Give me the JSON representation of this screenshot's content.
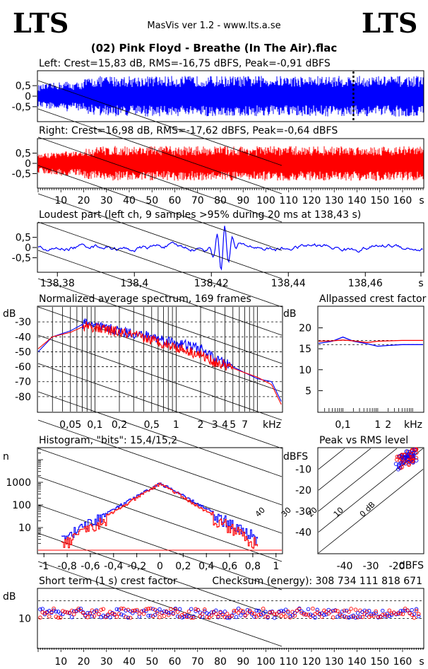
{
  "header": {
    "logo_left": "LTS",
    "logo_right": "LTS",
    "app": "MasVis ver 1.2 - www.lts.a.se",
    "track": "(02) Pink Floyd - Breathe (In The Air).flac"
  },
  "colors": {
    "left": "#0000ff",
    "right": "#ff0000",
    "grid": "#000000"
  },
  "chart_data": [
    {
      "type": "area",
      "id": "left_waveform",
      "title": "Left: Crest=15,83 dB, RMS=-16,75 dBFS, Peak=-0,91 dBFS",
      "yticks": [
        "0,5",
        "0",
        "-0,5"
      ],
      "ylim": [
        -1,
        1
      ],
      "marker_s": 138.43,
      "duration_s": 169
    },
    {
      "type": "area",
      "id": "right_waveform",
      "title": "Right: Crest=16,98 dB, RMS=-17,62 dBFS, Peak=-0,64 dBFS",
      "yticks": [
        "0,5",
        "0",
        "-0,5"
      ],
      "ylim": [
        -1,
        1
      ],
      "xticks": [
        "10",
        "20",
        "30",
        "40",
        "50",
        "60",
        "70",
        "80",
        "90",
        "100",
        "110",
        "120",
        "130",
        "140",
        "150",
        "160",
        "s"
      ]
    },
    {
      "type": "line",
      "id": "loudest_part",
      "title": "Loudest part (left  ch, 9 samples >95% during 20 ms at 138,43 s)",
      "yticks": [
        "0,5",
        "0",
        "-0,5"
      ],
      "ylim": [
        -1,
        1
      ],
      "xticks": [
        "138,38",
        "138,4",
        "138,42",
        "138,44",
        "138,46",
        "s"
      ],
      "xlim": [
        138.375,
        138.475
      ],
      "peak_at": 138.423
    },
    {
      "type": "line",
      "id": "spectrum",
      "title": "Normalized average spectrum, 169 frames",
      "ylabel": "dB",
      "yticks": [
        "-30",
        "-40",
        "-50",
        "-60",
        "-70",
        "-80"
      ],
      "xticks": [
        "0,05",
        "0,1",
        "0,2",
        "0,5",
        "1",
        "2",
        "3",
        "4",
        "5",
        "7",
        "kHz"
      ],
      "xlim_khz": [
        0.02,
        20
      ],
      "ylim_db": [
        -90,
        -20
      ],
      "series": [
        {
          "name": "left",
          "x": [
            0.02,
            0.03,
            0.05,
            0.08,
            0.1,
            0.2,
            0.5,
            1,
            2,
            3,
            5,
            7,
            10,
            15,
            20
          ],
          "y": [
            -50,
            -40,
            -36,
            -30,
            -33,
            -36,
            -40,
            -44,
            -48,
            -55,
            -60,
            -64,
            -68,
            -70,
            -84
          ]
        },
        {
          "name": "right",
          "x": [
            0.02,
            0.03,
            0.05,
            0.08,
            0.1,
            0.2,
            0.5,
            1,
            2,
            3,
            5,
            7,
            10,
            15,
            20
          ],
          "y": [
            -48,
            -40,
            -37,
            -32,
            -34,
            -37,
            -42,
            -47,
            -52,
            -57,
            -61,
            -64,
            -67,
            -72,
            -86
          ]
        }
      ]
    },
    {
      "type": "line",
      "id": "allpassed_crest",
      "title": "Allpassed crest factor",
      "ylabel": "dB",
      "yticks": [
        "20",
        "15",
        "10",
        "5"
      ],
      "ylim": [
        0,
        25
      ],
      "xticks": [
        "0,1",
        "1",
        "2",
        "kHz"
      ],
      "series": [
        {
          "name": "left",
          "x": [
            0.02,
            0.05,
            0.1,
            0.2,
            0.5,
            1,
            2,
            5,
            20
          ],
          "y": [
            16.3,
            16.8,
            17.8,
            16.8,
            16.2,
            15.6,
            15.8,
            16,
            16
          ]
        },
        {
          "name": "right",
          "x": [
            0.02,
            0.05,
            0.1,
            0.2,
            0.5,
            1,
            2,
            5,
            20
          ],
          "y": [
            16.8,
            16.9,
            17.1,
            16.9,
            16.5,
            16.8,
            16.9,
            17,
            17
          ]
        }
      ]
    },
    {
      "type": "line",
      "id": "histogram",
      "title": "Histogram, \"bits\": 15,4/15,2",
      "ylabel": "n",
      "yticks": [
        "1000",
        "100",
        "10"
      ],
      "xticks": [
        "-1",
        "-0,8",
        "-0,6",
        "-0,4",
        "-0,2",
        "0",
        "0,2",
        "0,4",
        "0,6",
        "0,8",
        "1"
      ],
      "xlim": [
        -1.05,
        1.05
      ],
      "peak_n": 900
    },
    {
      "type": "scatter",
      "id": "peak_vs_rms",
      "title": "Peak vs RMS level",
      "ylabel": "dBFS",
      "xlabel": "dBFS",
      "yticks": [
        "-10",
        "-20",
        "-30",
        "-40"
      ],
      "xticks": [
        "-40",
        "-30",
        "-20"
      ],
      "diagonals": [
        "40",
        "30",
        "20",
        "10",
        "0 dB"
      ],
      "xlim": [
        -50,
        -10
      ],
      "ylim": [
        -50,
        0
      ],
      "cluster": {
        "x_center": -16.5,
        "y_center": -5
      }
    },
    {
      "type": "scatter",
      "id": "short_term_crest",
      "title": "Short term (1 s) crest factor",
      "checksum": "Checksum (energy):   308 734 111 818 671",
      "ylabel": "dB",
      "yticks": [
        "10"
      ],
      "ylim": [
        0,
        20
      ],
      "xticks": [
        "10",
        "20",
        "30",
        "40",
        "50",
        "60",
        "70",
        "80",
        "90",
        "100",
        "110",
        "120",
        "130",
        "140",
        "150",
        "160",
        "s"
      ],
      "mean_db": 11.8
    }
  ]
}
